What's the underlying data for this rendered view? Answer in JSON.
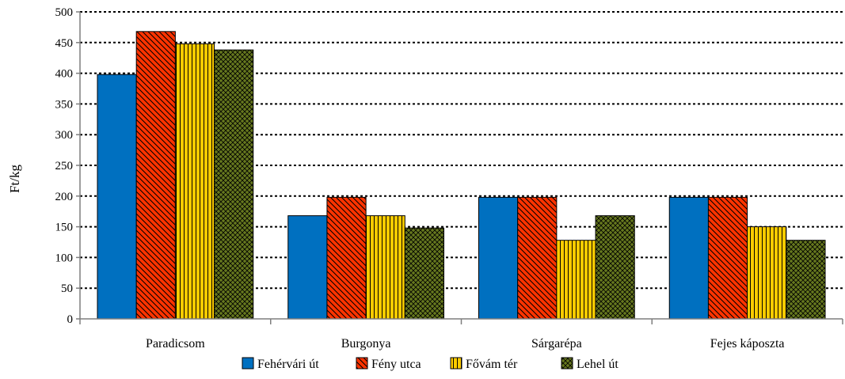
{
  "colors": {
    "Fehérvári út": "#0070C0",
    "Fény utca": "#FF3300",
    "Fővám tér": "#FFCC00",
    "Lehel út": "#66781E",
    "axis": "#7f7f7f",
    "grid": "#000000"
  },
  "chart_data": {
    "type": "bar",
    "title": "",
    "xlabel": "",
    "ylabel": "Ft/kg",
    "ylim": [
      0,
      500
    ],
    "yticks": [
      0,
      50,
      100,
      150,
      200,
      250,
      300,
      350,
      400,
      450,
      500
    ],
    "grid": "horizontal dotted",
    "legend_position": "bottom",
    "categories": [
      "Paradicsom",
      "Burgonya",
      "Sárgarépa",
      "Fejes káposzta"
    ],
    "series": [
      {
        "name": "Fehérvári út",
        "pattern": "solid",
        "values": [
          398,
          168,
          198,
          198
        ]
      },
      {
        "name": "Fény utca",
        "pattern": "diagonal-stripes",
        "values": [
          468,
          198,
          198,
          198
        ]
      },
      {
        "name": "Fővám tér",
        "pattern": "vertical-stripes",
        "values": [
          448,
          168,
          128,
          150
        ]
      },
      {
        "name": "Lehel út",
        "pattern": "crosshatch",
        "values": [
          438,
          148,
          168,
          128
        ]
      }
    ]
  }
}
